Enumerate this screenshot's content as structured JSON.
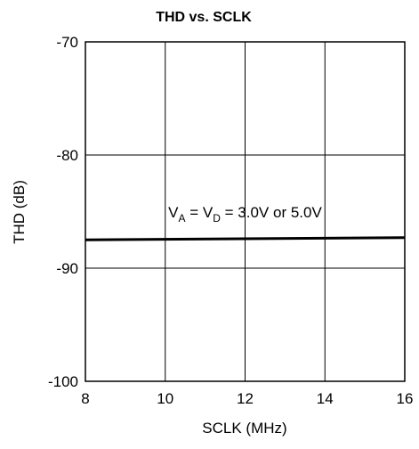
{
  "chart_data": {
    "type": "line",
    "title": "THD vs. SCLK",
    "xlabel": "SCLK (MHz)",
    "ylabel": "THD (dB)",
    "xlim": [
      8,
      16
    ],
    "ylim": [
      -100,
      -70
    ],
    "x_ticks": [
      8,
      10,
      12,
      14,
      16
    ],
    "y_ticks": [
      -70,
      -80,
      -90,
      -100
    ],
    "x_tick_labels": [
      "8",
      "10",
      "12",
      "14",
      "16"
    ],
    "y_tick_labels": [
      "-70",
      "-80",
      "-90",
      "-100"
    ],
    "grid": true,
    "legend": false,
    "series": [
      {
        "x": [
          8,
          16
        ],
        "y": [
          -87.5,
          -87.3
        ],
        "color": "#000000"
      }
    ],
    "annotation": {
      "main": "V",
      "sub_a": "A",
      "middle": " = V",
      "sub_d": "D",
      "tail": " = 3.0V or 5.0V",
      "x": 12,
      "y": -85.5
    }
  }
}
